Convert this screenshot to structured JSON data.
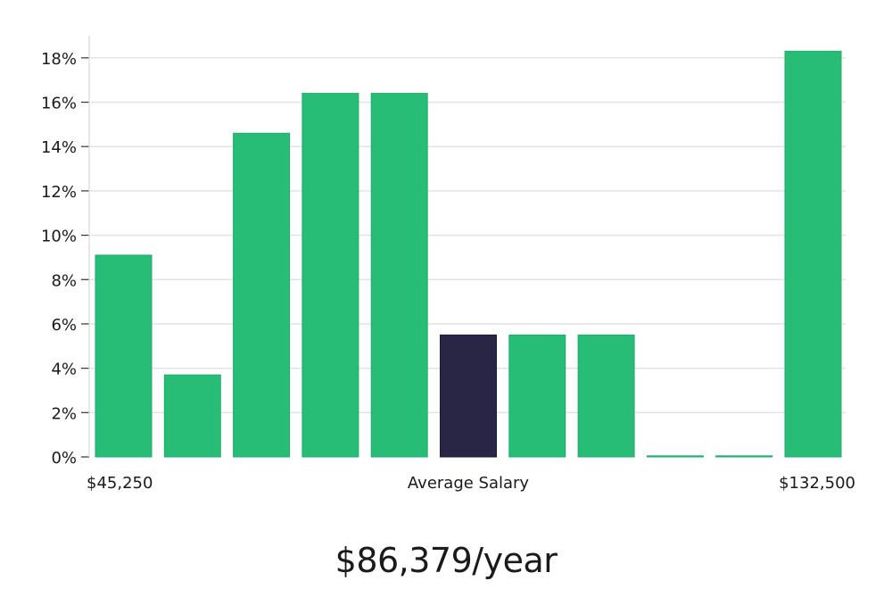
{
  "chart_data": {
    "type": "bar",
    "categories": [
      "1",
      "2",
      "3",
      "4",
      "5",
      "6",
      "7",
      "8",
      "9",
      "10",
      "11"
    ],
    "values": [
      9.1,
      3.7,
      14.6,
      16.4,
      16.4,
      5.5,
      5.5,
      5.5,
      0,
      0,
      18.3
    ],
    "highlight_index": 5,
    "ylim": [
      0,
      19
    ],
    "yticks": [
      0,
      2,
      4,
      6,
      8,
      10,
      12,
      14,
      16,
      18
    ],
    "ytick_suffix": "%",
    "grid": true,
    "colors": {
      "bar": "#27bd76",
      "highlight": "#282545",
      "grid": "#e3e3e3",
      "axis": "#d9d9d9"
    },
    "x_labels": {
      "left": "$45,250",
      "center": "Average Salary",
      "right": "$132,500"
    }
  },
  "salary": "$86,379/year"
}
